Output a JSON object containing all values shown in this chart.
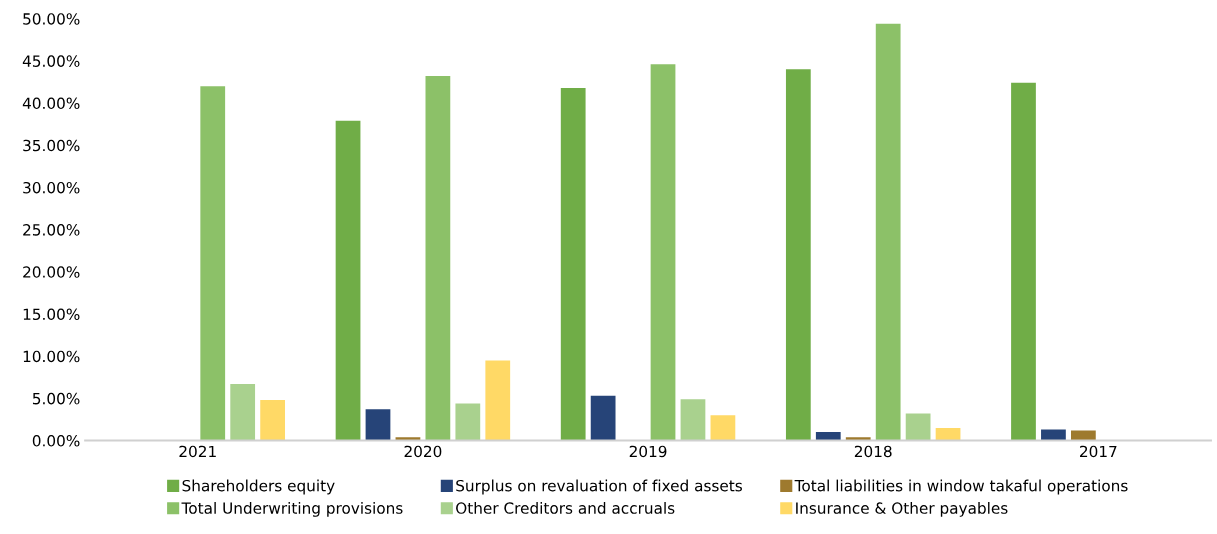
{
  "chart_data": {
    "type": "bar",
    "categories": [
      "2021",
      "2020",
      "2019",
      "2018",
      "2017"
    ],
    "series": [
      {
        "name": "Shareholders equity",
        "color": "#70ad47",
        "values": [
          null,
          37.9,
          41.8,
          44.0,
          42.4
        ]
      },
      {
        "name": "Surplus on revaluation of fixed assets",
        "color": "#264478",
        "values": [
          null,
          3.7,
          5.3,
          1.0,
          1.3
        ]
      },
      {
        "name": "Total liabilities in window takaful operations",
        "color": "#9e7a2e",
        "values": [
          null,
          0.4,
          null,
          0.4,
          1.2
        ]
      },
      {
        "name": "Total Underwriting provisions",
        "color": "#8cc168",
        "values": [
          42.0,
          43.2,
          44.6,
          49.4,
          null
        ]
      },
      {
        "name": "Other Creditors and accruals",
        "color": "#a9d18e",
        "values": [
          6.7,
          4.4,
          4.9,
          3.2,
          null
        ]
      },
      {
        "name": "Insurance & Other payables",
        "color": "#ffd966",
        "values": [
          4.8,
          9.5,
          3.0,
          1.5,
          null
        ]
      }
    ],
    "ylim": [
      0,
      50
    ],
    "yticks": [
      {
        "value": 0,
        "label": "0.00%"
      },
      {
        "value": 5,
        "label": "5.00%"
      },
      {
        "value": 10,
        "label": "10.00%"
      },
      {
        "value": 15,
        "label": "15.00%"
      },
      {
        "value": 20,
        "label": "20.00%"
      },
      {
        "value": 25,
        "label": "25.00%"
      },
      {
        "value": 30,
        "label": "30.00%"
      },
      {
        "value": 35,
        "label": "35.00%"
      },
      {
        "value": 40,
        "label": "40.00%"
      },
      {
        "value": 45,
        "label": "45.00%"
      },
      {
        "value": 50,
        "label": "50.00%"
      }
    ],
    "grid": false,
    "legend": "bottom"
  }
}
